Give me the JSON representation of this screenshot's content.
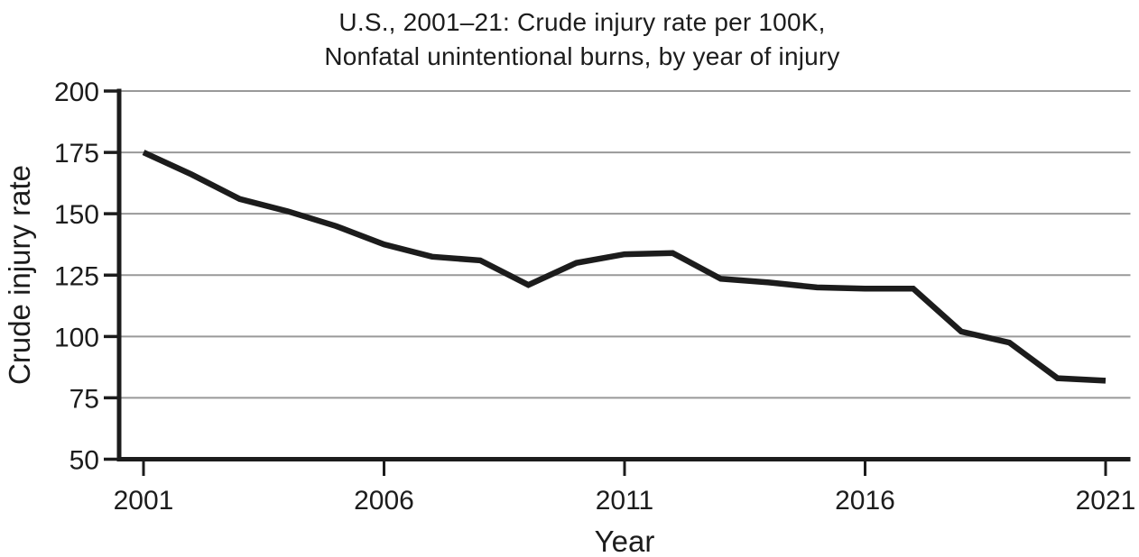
{
  "page": {
    "background": "#ffffff"
  },
  "chart_data": {
    "type": "line",
    "title_line1": "U.S., 2001–21: Crude injury rate per 100K,",
    "title_line2": "Nonfatal unintentional burns, by year of injury",
    "xlabel": "Year",
    "ylabel": "Crude injury rate",
    "xlim": [
      2001,
      2021
    ],
    "ylim": [
      50,
      200
    ],
    "x_ticks": [
      2001,
      2006,
      2011,
      2016,
      2021
    ],
    "y_ticks": [
      50,
      75,
      100,
      125,
      150,
      175,
      200
    ],
    "grid": "horizontal",
    "legend": "none",
    "x": [
      2001,
      2002,
      2003,
      2004,
      2005,
      2006,
      2007,
      2008,
      2009,
      2010,
      2011,
      2012,
      2013,
      2014,
      2015,
      2016,
      2017,
      2018,
      2019,
      2020,
      2021
    ],
    "series": [
      {
        "name": "Crude injury rate, nonfatal unintentional burns",
        "values": [
          175,
          166,
          156,
          151,
          145,
          137.5,
          132.5,
          131,
          121,
          130,
          133.5,
          134,
          123.5,
          122,
          120,
          119.5,
          119.5,
          102,
          97.5,
          83,
          82
        ]
      }
    ],
    "colors": {
      "line": "#1c1c1c",
      "grid": "#999999",
      "axis": "#1c1c1c",
      "text": "#1c1c1c",
      "background": "#ffffff"
    }
  }
}
